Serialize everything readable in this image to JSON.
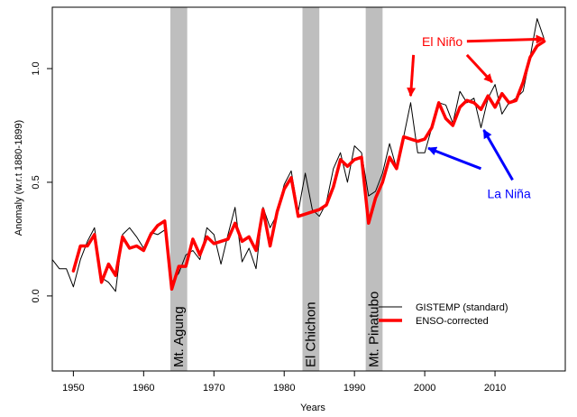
{
  "chart_data": {
    "type": "line",
    "title": "",
    "xlabel": "Years",
    "ylabel": "Anomaly (w.r.t 1880-1899)",
    "xlim": [
      1947,
      2020
    ],
    "ylim": [
      -0.33,
      1.27
    ],
    "x_ticks": [
      1950,
      1960,
      1970,
      1980,
      1990,
      2000,
      2010
    ],
    "y_ticks": [
      0.0,
      0.5,
      1.0
    ],
    "y_tick_labels": [
      "0.0",
      "0.5",
      "1.0"
    ],
    "grid": false,
    "legend_position": "bottom-right",
    "series": [
      {
        "name": "GISTEMP (standard)",
        "color": "#000000",
        "x": [
          1947,
          1948,
          1949,
          1950,
          1951,
          1952,
          1953,
          1954,
          1955,
          1956,
          1957,
          1958,
          1959,
          1960,
          1961,
          1962,
          1963,
          1964,
          1965,
          1966,
          1967,
          1968,
          1969,
          1970,
          1971,
          1972,
          1973,
          1974,
          1975,
          1976,
          1977,
          1978,
          1979,
          1980,
          1981,
          1982,
          1983,
          1984,
          1985,
          1986,
          1987,
          1988,
          1989,
          1990,
          1991,
          1992,
          1993,
          1994,
          1995,
          1996,
          1997,
          1998,
          1999,
          2000,
          2001,
          2002,
          2003,
          2004,
          2005,
          2006,
          2007,
          2008,
          2009,
          2010,
          2011,
          2012,
          2013,
          2014,
          2015,
          2016,
          2017
        ],
        "values": [
          0.16,
          0.12,
          0.12,
          0.04,
          0.16,
          0.24,
          0.3,
          0.08,
          0.06,
          0.02,
          0.27,
          0.3,
          0.26,
          0.21,
          0.28,
          0.27,
          0.29,
          0.06,
          0.1,
          0.18,
          0.2,
          0.16,
          0.3,
          0.27,
          0.14,
          0.27,
          0.39,
          0.15,
          0.21,
          0.12,
          0.39,
          0.3,
          0.36,
          0.49,
          0.55,
          0.37,
          0.54,
          0.38,
          0.35,
          0.41,
          0.56,
          0.63,
          0.5,
          0.66,
          0.63,
          0.44,
          0.46,
          0.54,
          0.67,
          0.56,
          0.7,
          0.85,
          0.63,
          0.63,
          0.74,
          0.85,
          0.84,
          0.76,
          0.9,
          0.85,
          0.87,
          0.74,
          0.87,
          0.93,
          0.8,
          0.85,
          0.87,
          0.9,
          1.05,
          1.22,
          1.13
        ]
      },
      {
        "name": "ENSO-corrected",
        "color": "#ff0000",
        "x": [
          1950,
          1951,
          1952,
          1953,
          1954,
          1955,
          1956,
          1957,
          1958,
          1959,
          1960,
          1961,
          1962,
          1963,
          1964,
          1965,
          1966,
          1967,
          1968,
          1969,
          1970,
          1971,
          1972,
          1973,
          1974,
          1975,
          1976,
          1977,
          1978,
          1979,
          1980,
          1981,
          1982,
          1983,
          1984,
          1985,
          1986,
          1987,
          1988,
          1989,
          1990,
          1991,
          1992,
          1993,
          1994,
          1995,
          1996,
          1997,
          1998,
          1999,
          2000,
          2001,
          2002,
          2003,
          2004,
          2005,
          2006,
          2007,
          2008,
          2009,
          2010,
          2011,
          2012,
          2013,
          2014,
          2015,
          2016,
          2017
        ],
        "values": [
          0.11,
          0.22,
          0.22,
          0.27,
          0.06,
          0.14,
          0.09,
          0.26,
          0.21,
          0.22,
          0.2,
          0.27,
          0.31,
          0.33,
          0.03,
          0.13,
          0.13,
          0.25,
          0.18,
          0.26,
          0.23,
          0.24,
          0.25,
          0.32,
          0.24,
          0.26,
          0.2,
          0.38,
          0.22,
          0.37,
          0.47,
          0.52,
          0.35,
          0.36,
          0.37,
          0.38,
          0.4,
          0.48,
          0.6,
          0.57,
          0.6,
          0.61,
          0.32,
          0.43,
          0.5,
          0.61,
          0.56,
          0.7,
          0.69,
          0.68,
          0.69,
          0.74,
          0.85,
          0.78,
          0.75,
          0.83,
          0.86,
          0.85,
          0.82,
          0.88,
          0.83,
          0.89,
          0.85,
          0.86,
          0.94,
          1.05,
          1.1,
          1.12
        ]
      }
    ],
    "volcanoes": [
      {
        "name": "Mt. Agung",
        "start": 1963.8,
        "end": 1966.2
      },
      {
        "name": "El Chichon",
        "start": 1982.6,
        "end": 1985.0
      },
      {
        "name": "Mt. Pinatubo",
        "start": 1991.6,
        "end": 1994.0
      }
    ],
    "annotations": [
      {
        "text": "El Niño",
        "color": "#ff0000",
        "x": 2002.5,
        "y": 1.12,
        "arrows": [
          [
            1998.4,
            1.06,
            1998.0,
            0.88
          ],
          [
            2006.0,
            1.06,
            2009.6,
            0.94
          ],
          [
            2006.0,
            1.12,
            2017.0,
            1.13
          ]
        ]
      },
      {
        "text": "La Niña",
        "color": "#0000ff",
        "x": 2012.0,
        "y": 0.45,
        "arrows": [
          [
            2008.0,
            0.56,
            2000.5,
            0.65
          ],
          [
            2012.5,
            0.51,
            2008.4,
            0.73
          ]
        ]
      }
    ]
  }
}
